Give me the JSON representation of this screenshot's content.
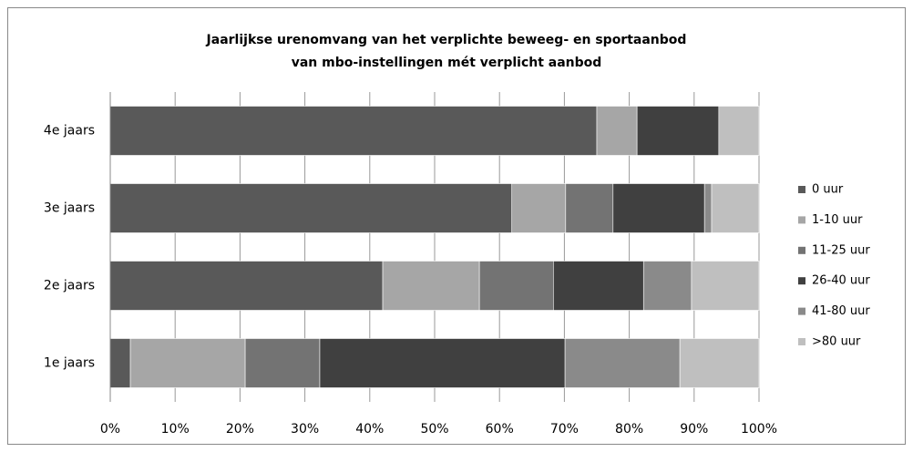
{
  "chart_data": {
    "type": "stacked-bar-horizontal",
    "title": [
      "Jaarlijkse urenomvang van het verplichte beweeg- en sportaanbod",
      "van mbo-instellingen mét verplicht aanbod"
    ],
    "categories": [
      "1e jaars",
      "2e jaars",
      "3e jaars",
      "4e jaars"
    ],
    "series": [
      {
        "name": "0 uur",
        "color": "#595959",
        "values": [
          3.1,
          42.0,
          61.9,
          75.0
        ]
      },
      {
        "name": "1-10 uur",
        "color": "#a6a6a6",
        "values": [
          17.7,
          14.9,
          8.3,
          6.2
        ]
      },
      {
        "name": "11-25 uur",
        "color": "#737373",
        "values": [
          11.5,
          11.4,
          7.3,
          0
        ]
      },
      {
        "name": "26-40 uur",
        "color": "#404040",
        "values": [
          37.8,
          13.9,
          14.1,
          12.6
        ]
      },
      {
        "name": "41-80 uur",
        "color": "#8a8a8a",
        "values": [
          17.7,
          7.4,
          1.1,
          0
        ]
      },
      {
        "name": ">80 uur",
        "color": "#bfbfbf",
        "values": [
          12.2,
          10.4,
          7.3,
          6.2
        ]
      }
    ],
    "xlim": [
      0,
      100
    ],
    "xticks": [
      {
        "value": 0,
        "label": "0%"
      },
      {
        "value": 10,
        "label": "10%"
      },
      {
        "value": 20,
        "label": "20%"
      },
      {
        "value": 30,
        "label": "30%"
      },
      {
        "value": 40,
        "label": "40%"
      },
      {
        "value": 50,
        "label": "50%"
      },
      {
        "value": 60,
        "label": "60%"
      },
      {
        "value": 70,
        "label": "70%"
      },
      {
        "value": 80,
        "label": "80%"
      },
      {
        "value": 90,
        "label": "90%"
      },
      {
        "value": 100,
        "label": "100%"
      }
    ],
    "grid": true,
    "legend": "right"
  }
}
